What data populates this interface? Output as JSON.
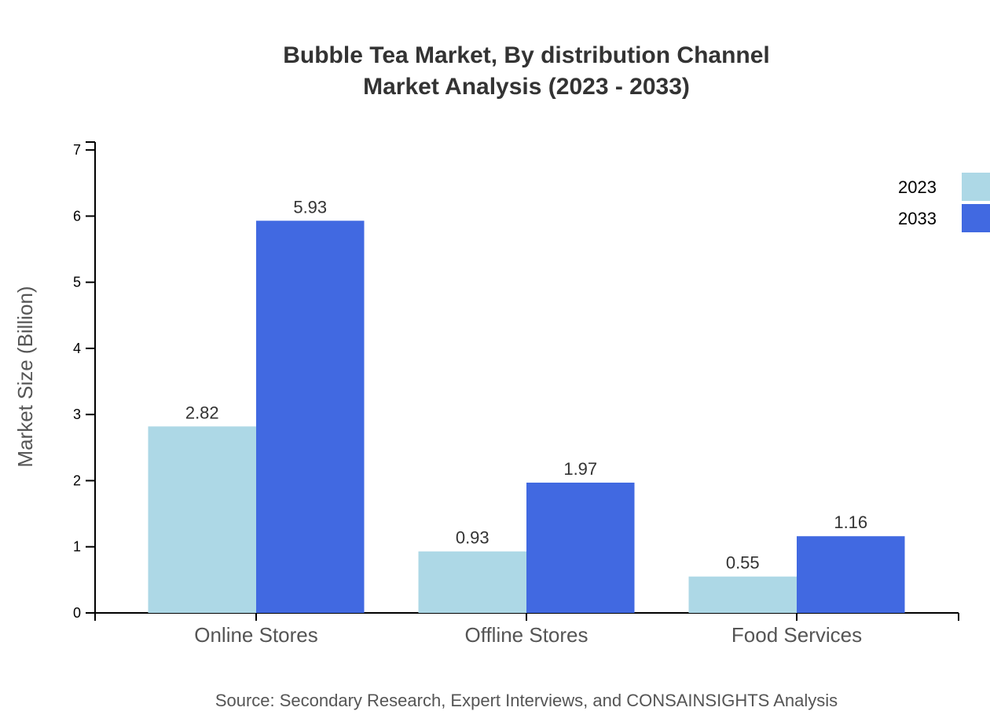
{
  "chart_data": {
    "type": "bar",
    "title": "Bubble Tea Market, By distribution Channel",
    "subtitle": "Market Analysis (2023 - 2033)",
    "xlabel": "",
    "ylabel": "Market Size (Billion)",
    "categories": [
      "Online Stores",
      "Offline Stores",
      "Food Services"
    ],
    "series": [
      {
        "name": "2023",
        "color": "#ADD8E6",
        "values": [
          2.82,
          0.93,
          0.55
        ]
      },
      {
        "name": "2033",
        "color": "#4169E1",
        "values": [
          5.93,
          1.97,
          1.16
        ]
      }
    ],
    "ylim": [
      0,
      7.12
    ],
    "yticks": [
      0,
      1,
      2,
      3,
      4,
      5,
      6,
      7
    ],
    "grid": false,
    "legend_position": "top-right",
    "source": "Source: Secondary Research, Expert Interviews, and CONSAINSIGHTS Analysis"
  }
}
